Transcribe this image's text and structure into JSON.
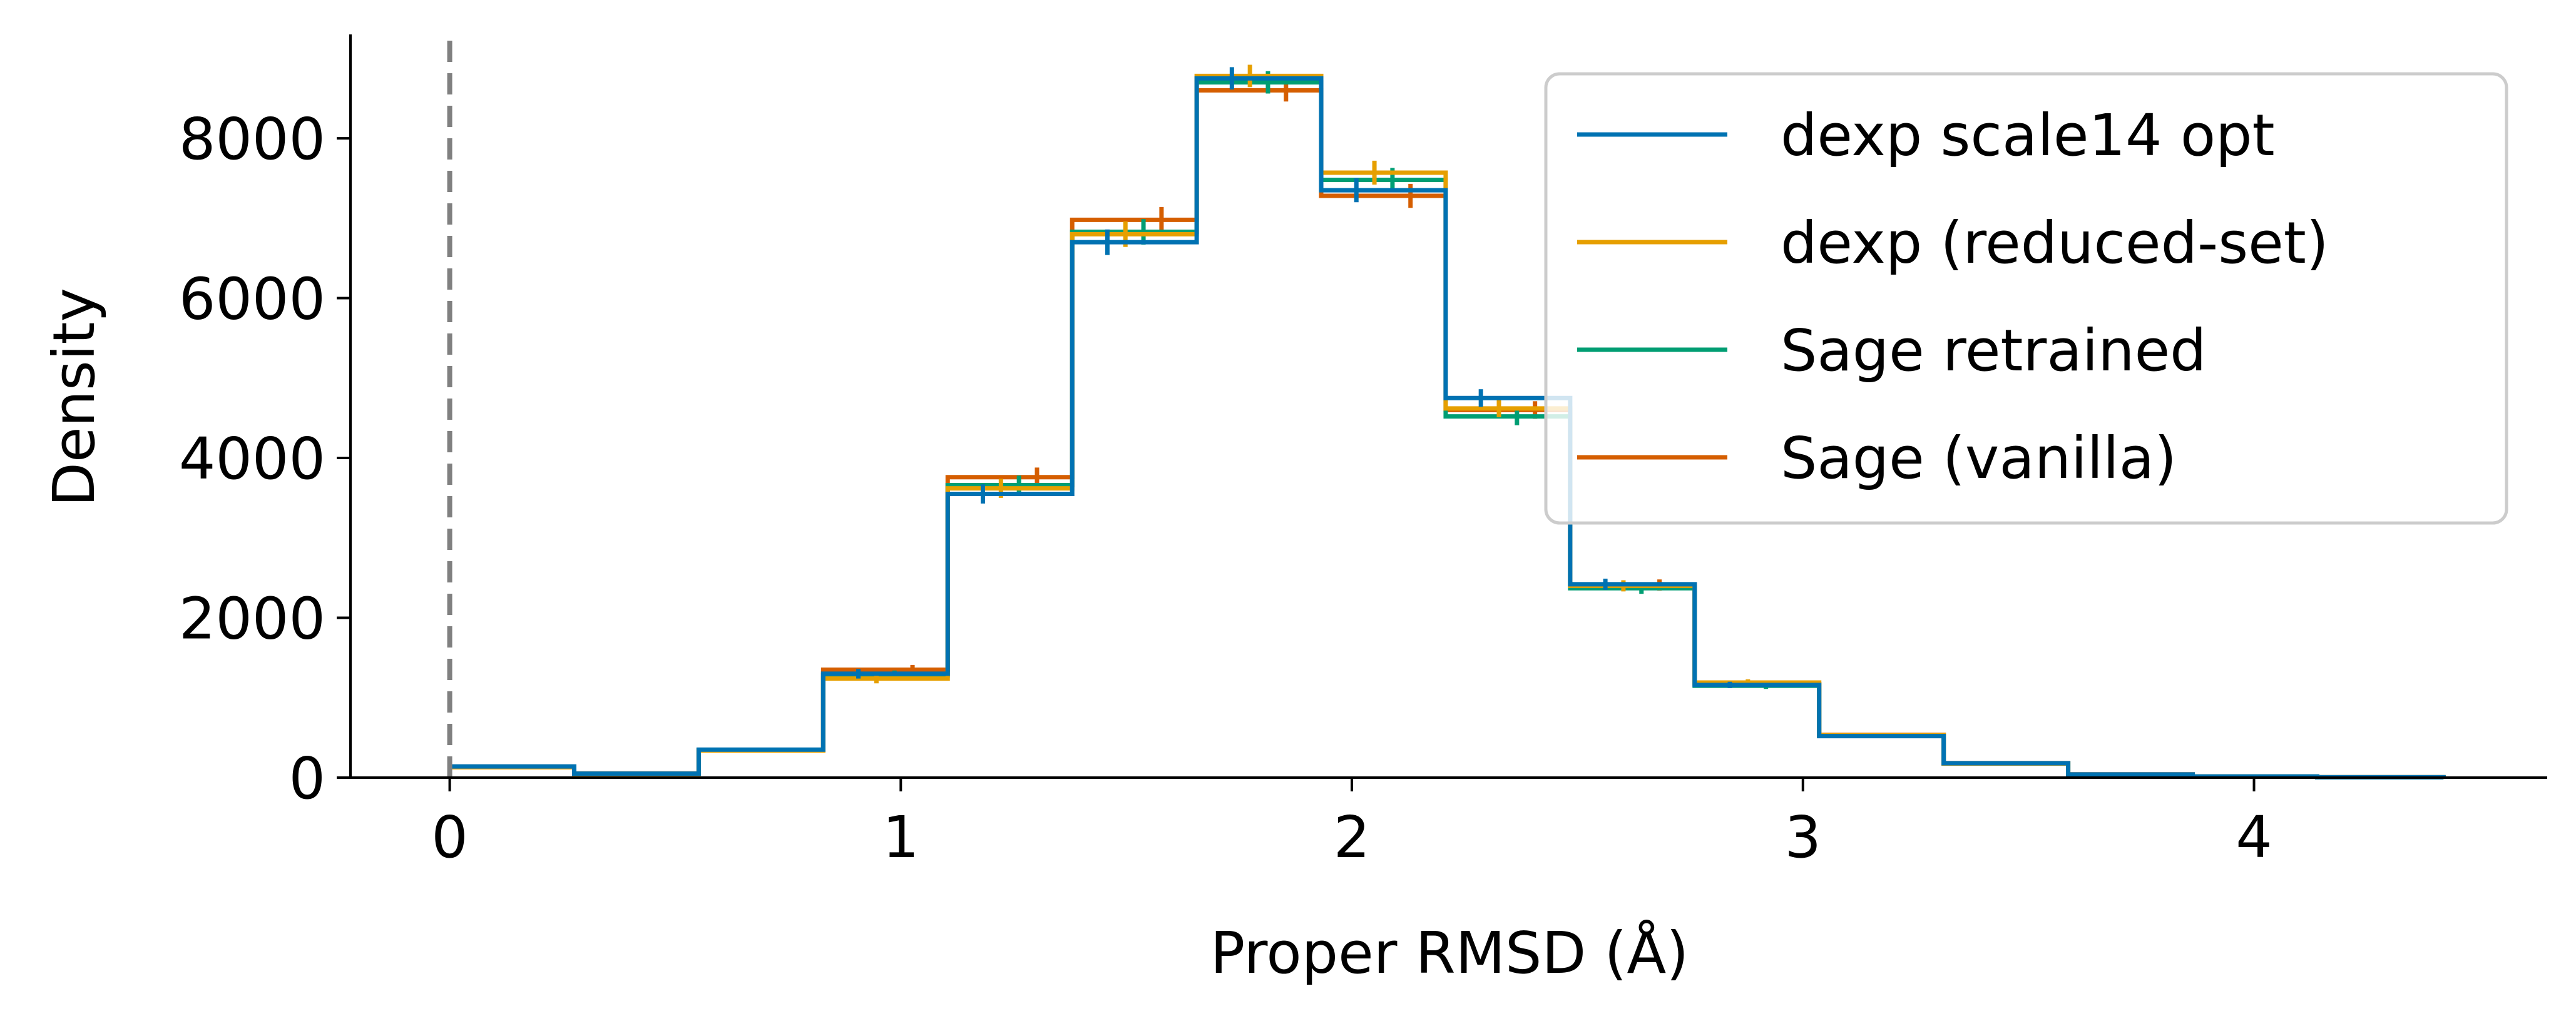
{
  "chart_data": {
    "type": "histogram-step",
    "xlabel": "Proper RMSD (Å)",
    "ylabel": "Density",
    "xlim": [
      -0.22,
      4.65
    ],
    "ylim": [
      0,
      9300
    ],
    "x_ticks": [
      0,
      1,
      2,
      3,
      4
    ],
    "y_ticks": [
      0,
      2000,
      4000,
      6000,
      8000
    ],
    "reference_line": {
      "x": 0,
      "style": "dashed",
      "color": "#808080"
    },
    "bin_edges": [
      0,
      0.276,
      0.552,
      0.828,
      1.104,
      1.38,
      1.656,
      1.932,
      2.208,
      2.484,
      2.76,
      3.036,
      3.312,
      3.588,
      3.864,
      4.14,
      4.42
    ],
    "legend": {
      "position": "top-right",
      "frame": true
    },
    "series": [
      {
        "name": "dexp scale14 opt",
        "color": "#0072B2",
        "values": [
          140,
          50,
          350,
          1300,
          3550,
          6700,
          8750,
          7350,
          4750,
          2420,
          1160,
          520,
          180,
          40,
          15,
          5
        ],
        "errors": [
          0,
          0,
          0,
          60,
          120,
          160,
          140,
          150,
          110,
          70,
          40,
          0,
          0,
          0,
          0,
          0
        ]
      },
      {
        "name": "dexp (reduced-set)",
        "color": "#E69F00",
        "values": [
          130,
          45,
          340,
          1240,
          3620,
          6800,
          8780,
          7570,
          4620,
          2400,
          1190,
          530,
          175,
          38,
          14,
          5
        ],
        "errors": [
          0,
          0,
          0,
          60,
          120,
          160,
          140,
          150,
          110,
          70,
          40,
          0,
          0,
          0,
          0,
          0
        ]
      },
      {
        "name": "Sage retrained",
        "color": "#009E73",
        "values": [
          135,
          48,
          345,
          1280,
          3660,
          6830,
          8700,
          7480,
          4520,
          2370,
          1150,
          525,
          178,
          39,
          15,
          5
        ],
        "errors": [
          0,
          0,
          0,
          60,
          120,
          160,
          140,
          150,
          110,
          70,
          40,
          0,
          0,
          0,
          0,
          0
        ]
      },
      {
        "name": "Sage (vanilla)",
        "color": "#D55E00",
        "values": [
          138,
          52,
          348,
          1350,
          3760,
          6980,
          8600,
          7280,
          4600,
          2410,
          1170,
          535,
          182,
          41,
          15,
          5
        ],
        "errors": [
          0,
          0,
          0,
          60,
          120,
          160,
          140,
          150,
          110,
          70,
          40,
          0,
          0,
          0,
          0,
          0
        ]
      }
    ]
  }
}
